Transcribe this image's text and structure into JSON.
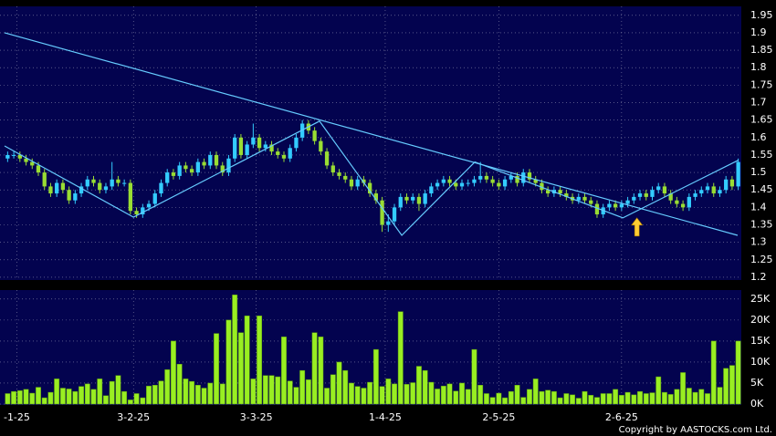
{
  "chart_data": {
    "type": "candlestick",
    "open": [
      1.54,
      1.55,
      1.55,
      1.54,
      1.53,
      1.52,
      1.5,
      1.46,
      1.44,
      1.47,
      1.45,
      1.42,
      1.44,
      1.46,
      1.48,
      1.47,
      1.45,
      1.46,
      1.48,
      1.47,
      1.47,
      1.39,
      1.38,
      1.4,
      1.41,
      1.44,
      1.47,
      1.5,
      1.49,
      1.52,
      1.51,
      1.5,
      1.53,
      1.52,
      1.55,
      1.52,
      1.5,
      1.54,
      1.6,
      1.55,
      1.58,
      1.6,
      1.57,
      1.58,
      1.56,
      1.55,
      1.54,
      1.57,
      1.6,
      1.64,
      1.62,
      1.59,
      1.56,
      1.52,
      1.5,
      1.49,
      1.48,
      1.46,
      1.48,
      1.47,
      1.44,
      1.42,
      1.35,
      1.36,
      1.4,
      1.43,
      1.42,
      1.43,
      1.41,
      1.44,
      1.46,
      1.47,
      1.48,
      1.47,
      1.46,
      1.47,
      1.47,
      1.48,
      1.49,
      1.48,
      1.47,
      1.46,
      1.48,
      1.49,
      1.47,
      1.5,
      1.48,
      1.47,
      1.45,
      1.44,
      1.45,
      1.44,
      1.43,
      1.42,
      1.43,
      1.42,
      1.41,
      1.38,
      1.4,
      1.41,
      1.4,
      1.41,
      1.42,
      1.43,
      1.44,
      1.43,
      1.45,
      1.46,
      1.44,
      1.42,
      1.41,
      1.4,
      1.43,
      1.44,
      1.45,
      1.46,
      1.44,
      1.45,
      1.48,
      1.46
    ],
    "high": [
      1.56,
      1.56,
      1.56,
      1.55,
      1.54,
      1.53,
      1.51,
      1.47,
      1.48,
      1.48,
      1.46,
      1.45,
      1.47,
      1.49,
      1.49,
      1.48,
      1.47,
      1.53,
      1.49,
      1.48,
      1.48,
      1.4,
      1.41,
      1.42,
      1.45,
      1.48,
      1.51,
      1.51,
      1.53,
      1.53,
      1.52,
      1.54,
      1.54,
      1.56,
      1.56,
      1.53,
      1.55,
      1.61,
      1.61,
      1.59,
      1.64,
      1.61,
      1.59,
      1.59,
      1.57,
      1.56,
      1.58,
      1.61,
      1.65,
      1.65,
      1.63,
      1.6,
      1.57,
      1.53,
      1.51,
      1.5,
      1.49,
      1.49,
      1.49,
      1.48,
      1.45,
      1.43,
      1.38,
      1.41,
      1.44,
      1.44,
      1.44,
      1.44,
      1.45,
      1.47,
      1.48,
      1.49,
      1.49,
      1.48,
      1.48,
      1.48,
      1.49,
      1.53,
      1.5,
      1.49,
      1.48,
      1.49,
      1.5,
      1.5,
      1.51,
      1.51,
      1.49,
      1.48,
      1.46,
      1.46,
      1.46,
      1.45,
      1.44,
      1.44,
      1.44,
      1.43,
      1.42,
      1.41,
      1.42,
      1.42,
      1.42,
      1.43,
      1.44,
      1.45,
      1.45,
      1.46,
      1.47,
      1.47,
      1.45,
      1.43,
      1.42,
      1.44,
      1.45,
      1.46,
      1.47,
      1.47,
      1.46,
      1.49,
      1.49,
      1.54
    ],
    "low": [
      1.53,
      1.54,
      1.53,
      1.52,
      1.51,
      1.49,
      1.45,
      1.43,
      1.43,
      1.44,
      1.41,
      1.41,
      1.43,
      1.45,
      1.46,
      1.44,
      1.44,
      1.45,
      1.46,
      1.46,
      1.38,
      1.37,
      1.37,
      1.39,
      1.4,
      1.43,
      1.46,
      1.48,
      1.48,
      1.5,
      1.49,
      1.49,
      1.51,
      1.51,
      1.51,
      1.49,
      1.49,
      1.53,
      1.54,
      1.54,
      1.57,
      1.56,
      1.56,
      1.55,
      1.54,
      1.53,
      1.53,
      1.56,
      1.59,
      1.61,
      1.58,
      1.55,
      1.51,
      1.49,
      1.48,
      1.47,
      1.45,
      1.45,
      1.46,
      1.43,
      1.41,
      1.33,
      1.33,
      1.35,
      1.39,
      1.41,
      1.41,
      1.39,
      1.4,
      1.43,
      1.45,
      1.46,
      1.46,
      1.45,
      1.45,
      1.46,
      1.46,
      1.47,
      1.47,
      1.46,
      1.45,
      1.45,
      1.47,
      1.46,
      1.46,
      1.47,
      1.46,
      1.44,
      1.43,
      1.43,
      1.43,
      1.42,
      1.41,
      1.41,
      1.41,
      1.4,
      1.37,
      1.37,
      1.39,
      1.39,
      1.39,
      1.4,
      1.41,
      1.42,
      1.42,
      1.42,
      1.44,
      1.43,
      1.41,
      1.4,
      1.39,
      1.39,
      1.42,
      1.43,
      1.44,
      1.43,
      1.43,
      1.44,
      1.45,
      1.45
    ],
    "close": [
      1.55,
      1.55,
      1.54,
      1.53,
      1.52,
      1.5,
      1.46,
      1.44,
      1.47,
      1.45,
      1.42,
      1.44,
      1.46,
      1.48,
      1.47,
      1.45,
      1.46,
      1.48,
      1.47,
      1.47,
      1.39,
      1.38,
      1.4,
      1.41,
      1.44,
      1.47,
      1.5,
      1.49,
      1.52,
      1.51,
      1.5,
      1.53,
      1.52,
      1.55,
      1.52,
      1.5,
      1.54,
      1.6,
      1.55,
      1.58,
      1.6,
      1.57,
      1.58,
      1.56,
      1.55,
      1.54,
      1.57,
      1.6,
      1.64,
      1.62,
      1.59,
      1.56,
      1.52,
      1.5,
      1.49,
      1.48,
      1.46,
      1.48,
      1.47,
      1.44,
      1.42,
      1.35,
      1.36,
      1.4,
      1.43,
      1.42,
      1.43,
      1.41,
      1.44,
      1.46,
      1.47,
      1.48,
      1.47,
      1.46,
      1.47,
      1.47,
      1.48,
      1.49,
      1.48,
      1.47,
      1.46,
      1.48,
      1.49,
      1.47,
      1.5,
      1.48,
      1.47,
      1.45,
      1.44,
      1.45,
      1.44,
      1.43,
      1.42,
      1.43,
      1.42,
      1.41,
      1.38,
      1.4,
      1.41,
      1.4,
      1.41,
      1.42,
      1.43,
      1.44,
      1.43,
      1.45,
      1.46,
      1.44,
      1.42,
      1.41,
      1.4,
      1.43,
      1.44,
      1.45,
      1.46,
      1.44,
      1.45,
      1.48,
      1.46,
      1.53
    ],
    "up_color": "#33ccff",
    "down_color": "#99dd33",
    "xlim": [
      -0.5,
      119.5
    ],
    "xticks": [
      {
        "value": 1.5,
        "label": "-1-25"
      },
      {
        "value": 20.5,
        "label": "3-2-25"
      },
      {
        "value": 40.5,
        "label": "3-3-25"
      },
      {
        "value": 61.5,
        "label": "1-4-25"
      },
      {
        "value": 80,
        "label": "2-5-25"
      },
      {
        "value": 100,
        "label": "2-6-25"
      }
    ],
    "ylim": [
      1.192,
      1.973
    ],
    "yticks": [
      1.2,
      1.25,
      1.3,
      1.35,
      1.4,
      1.45,
      1.5,
      1.55,
      1.6,
      1.65,
      1.7,
      1.75,
      1.8,
      1.85,
      1.9,
      1.95
    ],
    "grid": true,
    "line_color": "#66ccff",
    "trend_lines": [
      {
        "x": [
          -0.5,
          118.9
        ],
        "y": [
          1.9,
          1.32
        ]
      },
      {
        "x": [
          -0.5,
          20.5,
          50.8,
          64.2,
          76.1,
          100.2,
          119
        ],
        "y": [
          1.576,
          1.372,
          1.647,
          1.32,
          1.53,
          1.37,
          1.535
        ]
      }
    ],
    "arrow": {
      "x": 102.5,
      "y": 1.37,
      "color": "#ffcc33"
    },
    "volume": {
      "color": "#99ee22",
      "values": [
        2500,
        3000,
        3200,
        3500,
        2600,
        4000,
        1500,
        2800,
        6000,
        3800,
        3600,
        3000,
        4200,
        4800,
        3500,
        6000,
        2000,
        5400,
        6800,
        3000,
        1000,
        2500,
        1500,
        4300,
        4500,
        5500,
        8200,
        15000,
        9500,
        6000,
        5400,
        4500,
        3800,
        5000,
        16800,
        4800,
        20000,
        26000,
        17000,
        21000,
        6000,
        21000,
        6800,
        6800,
        6500,
        16000,
        5500,
        4000,
        8000,
        5800,
        17000,
        16000,
        3800,
        7000,
        10000,
        8000,
        5000,
        4200,
        3800,
        5200,
        13000,
        4200,
        6000,
        4800,
        22000,
        4700,
        5100,
        9000,
        8000,
        5200,
        3600,
        4300,
        4800,
        3100,
        5000,
        3500,
        13000,
        4500,
        2500,
        1600,
        2600,
        1500,
        3000,
        4500,
        1600,
        3500,
        6000,
        3000,
        3300,
        3000,
        1500,
        2500,
        2200,
        1400,
        3000,
        2100,
        1600,
        2500,
        2500,
        3500,
        2100,
        2800,
        2200,
        3000,
        2500,
        2700,
        6500,
        2800,
        2300,
        3500,
        7500,
        3800,
        2800,
        3500,
        2500,
        15000,
        4000,
        8500,
        9200,
        15000
      ],
      "ylim": [
        0,
        26700
      ],
      "yticks": [
        {
          "value": 0,
          "label": "0K"
        },
        {
          "value": 5000,
          "label": "5K"
        },
        {
          "value": 10000,
          "label": "10K"
        },
        {
          "value": 15000,
          "label": "15K"
        },
        {
          "value": 20000,
          "label": "20K"
        },
        {
          "value": 25000,
          "label": "25K"
        }
      ]
    },
    "copyright": "Copyright by AASTOCKS.com Ltd."
  }
}
